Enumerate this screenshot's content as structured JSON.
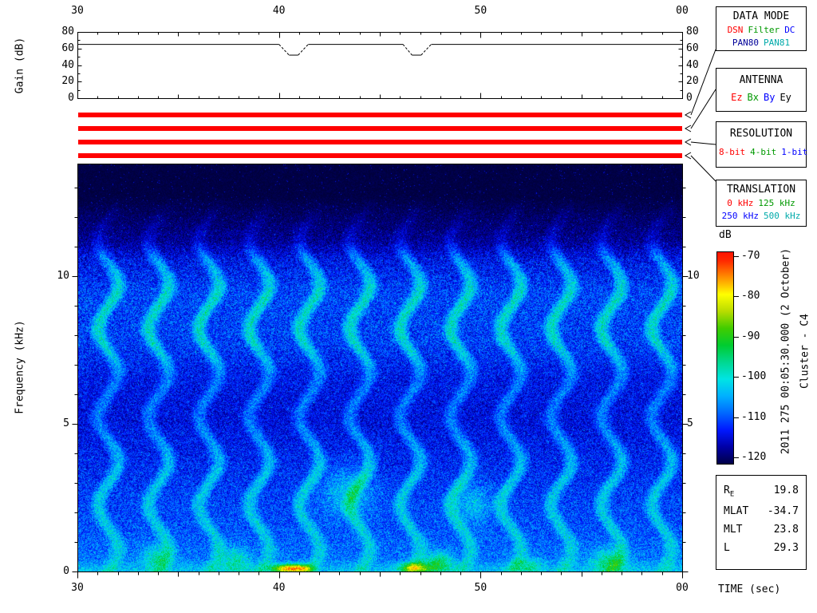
{
  "side_text": {
    "timestamp": "2011 275 00:05:30.000 (2 October)",
    "spacecraft": "Cluster - C4"
  },
  "panels": {
    "data_mode": {
      "title": "DATA MODE",
      "options_line1": [
        {
          "label": "DSN",
          "color": "#ff0000"
        },
        {
          "label": "Filter",
          "color": "#009900"
        },
        {
          "label": "DC",
          "color": "#0000ff"
        }
      ],
      "options_line2": [
        {
          "label": "PAN80",
          "color": "#000099"
        },
        {
          "label": "PAN81",
          "color": "#00aaaa"
        }
      ]
    },
    "antenna": {
      "title": "ANTENNA",
      "options": [
        {
          "label": "Ez",
          "color": "#ff0000"
        },
        {
          "label": "Bx",
          "color": "#009900"
        },
        {
          "label": "By",
          "color": "#0000ff"
        },
        {
          "label": "Ey",
          "color": "#000000"
        }
      ]
    },
    "resolution": {
      "title": "RESOLUTION",
      "options": [
        {
          "label": "8-bit",
          "color": "#ff0000"
        },
        {
          "label": "4-bit",
          "color": "#009900"
        },
        {
          "label": "1-bit",
          "color": "#0000ff"
        }
      ]
    },
    "translation": {
      "title": "TRANSLATION",
      "options_line1": [
        {
          "label": "0 kHz",
          "color": "#ff0000"
        },
        {
          "label": "125 kHz",
          "color": "#009900"
        }
      ],
      "options_line2": [
        {
          "label": "250 kHz",
          "color": "#0000ff"
        },
        {
          "label": "500 kHz",
          "color": "#00aaaa"
        }
      ]
    }
  },
  "mode_bars": {
    "color": "#ff0000",
    "bars": [
      {
        "name": "data-mode-active-bar"
      },
      {
        "name": "antenna-active-bar"
      },
      {
        "name": "resolution-active-bar"
      },
      {
        "name": "translation-active-bar"
      }
    ]
  },
  "info_box": {
    "rows": [
      {
        "label": "R",
        "label_sub": "E",
        "value": "19.8"
      },
      {
        "label": "MLAT",
        "label_sub": "",
        "value": "-34.7"
      },
      {
        "label": "MLT",
        "label_sub": "",
        "value": "23.8"
      },
      {
        "label": "L",
        "label_sub": "",
        "value": "29.3"
      }
    ]
  },
  "chart_data": [
    {
      "type": "line",
      "name": "agc-gain-panel",
      "ylabel": "Gain (dB)",
      "ylim": [
        0,
        80
      ],
      "yticks": [
        0,
        20,
        40,
        60,
        80
      ],
      "ytick_labels": [
        "0",
        "20",
        "40",
        "60",
        "80"
      ],
      "xlim_sec": [
        30,
        60
      ],
      "xticks_major": [
        30,
        40,
        50,
        60
      ],
      "xtick_labels": [
        "30",
        "40",
        "50",
        "00"
      ],
      "series": [
        {
          "name": "gain",
          "points": [
            [
              30,
              65
            ],
            [
              40.0,
              65
            ],
            [
              40.5,
              52
            ],
            [
              40.95,
              52
            ],
            [
              41.45,
              65
            ],
            [
              46.15,
              65
            ],
            [
              46.6,
              52
            ],
            [
              47.05,
              52
            ],
            [
              47.55,
              65
            ],
            [
              60,
              65
            ]
          ]
        }
      ]
    },
    {
      "type": "heatmap",
      "subtype": "spectrogram",
      "name": "wbd-spectrogram",
      "xlabel": "TIME (sec)",
      "ylabel": "Frequency (kHz)",
      "xlim_sec": [
        30,
        60
      ],
      "xticks_major": [
        30,
        40,
        50,
        60
      ],
      "xtick_labels": [
        "30",
        "40",
        "50",
        "00"
      ],
      "ylim_khz": [
        0,
        13.8
      ],
      "yticks": [
        0,
        5,
        10
      ],
      "ytick_labels_left": [
        "0",
        "5",
        "10"
      ],
      "ytick_labels_right": [
        "5",
        "10"
      ],
      "colorbar": {
        "label": "dB",
        "min": -120,
        "max": -70,
        "ticks": [
          -70,
          -80,
          -90,
          -100,
          -110,
          -120
        ],
        "tick_labels": [
          "-70",
          "-80",
          "-90",
          "-100",
          "-110",
          "-120"
        ]
      },
      "colormap_stops": [
        [
          -124,
          "#000020"
        ],
        [
          -120,
          "#000048"
        ],
        [
          -116,
          "#0000a8"
        ],
        [
          -112,
          "#0018ff"
        ],
        [
          -108,
          "#0068ff"
        ],
        [
          -104,
          "#00b0ff"
        ],
        [
          -100,
          "#00e4e4"
        ],
        [
          -96,
          "#00d890"
        ],
        [
          -92,
          "#00cc30"
        ],
        [
          -88,
          "#40cc00"
        ],
        [
          -84,
          "#b8dc00"
        ],
        [
          -80,
          "#ffff00"
        ],
        [
          -76,
          "#ff9000"
        ],
        [
          -72,
          "#ff2800"
        ],
        [
          -68,
          "#ff0000"
        ]
      ],
      "spectrum_profile": [
        {
          "f_khz": 12.7,
          "base_db": -120.3,
          "spread_db": 2.5,
          "mod_db": 0
        },
        {
          "f_khz": 11.2,
          "base_db": -116.0,
          "spread_db": 7,
          "mod_db": 2
        },
        {
          "f_khz": 10.6,
          "base_db": -111.0,
          "spread_db": 10,
          "mod_db": 5
        },
        {
          "f_khz": 9.4,
          "base_db": -107.0,
          "spread_db": 11,
          "mod_db": 7
        },
        {
          "f_khz": 7.75,
          "base_db": -107.5,
          "spread_db": 11,
          "mod_db": 7
        },
        {
          "f_khz": 6.6,
          "base_db": -111.0,
          "spread_db": 9,
          "mod_db": 4
        },
        {
          "f_khz": 5.2,
          "base_db": -111.8,
          "spread_db": 9,
          "mod_db": 4
        },
        {
          "f_khz": 3.1,
          "base_db": -108.5,
          "spread_db": 10,
          "mod_db": 6
        },
        {
          "f_khz": 1.4,
          "base_db": -107.0,
          "spread_db": 10,
          "mod_db": 5
        },
        {
          "f_khz": 0.45,
          "base_db": -105.5,
          "spread_db": 10,
          "mod_db": 4
        },
        {
          "f_khz": 0.06,
          "base_db": -101.5,
          "spread_db": 9,
          "mod_db": 3
        }
      ],
      "modulation": {
        "period_sec": 2.5,
        "phase_t0_sec": 31.5
      },
      "hotspots": [
        {
          "t_sec": 40.4,
          "f_khz": 0.1,
          "amp_db": 26,
          "sigma_t": 0.55,
          "sigma_f": 0.1
        },
        {
          "t_sec": 41.15,
          "f_khz": 0.1,
          "amp_db": 15,
          "sigma_t": 0.35,
          "sigma_f": 0.1
        },
        {
          "t_sec": 46.7,
          "f_khz": 0.12,
          "amp_db": 20,
          "sigma_t": 0.5,
          "sigma_f": 0.12
        },
        {
          "t_sec": 47.9,
          "f_khz": 0.3,
          "amp_db": 13,
          "sigma_t": 0.5,
          "sigma_f": 0.25
        },
        {
          "t_sec": 43.4,
          "f_khz": 2.7,
          "amp_db": 8,
          "sigma_t": 0.9,
          "sigma_f": 0.6
        },
        {
          "t_sec": 49.6,
          "f_khz": 2.3,
          "amp_db": 7,
          "sigma_t": 0.7,
          "sigma_f": 0.5
        },
        {
          "t_sec": 33.9,
          "f_khz": 0.5,
          "amp_db": 9,
          "sigma_t": 0.5,
          "sigma_f": 0.3
        },
        {
          "t_sec": 37.8,
          "f_khz": 0.4,
          "amp_db": 9,
          "sigma_t": 0.5,
          "sigma_f": 0.3
        },
        {
          "t_sec": 52.3,
          "f_khz": 0.2,
          "amp_db": 8,
          "sigma_t": 0.5,
          "sigma_f": 0.2
        },
        {
          "t_sec": 56.4,
          "f_khz": 0.35,
          "amp_db": 11,
          "sigma_t": 0.6,
          "sigma_f": 0.3
        }
      ]
    }
  ]
}
